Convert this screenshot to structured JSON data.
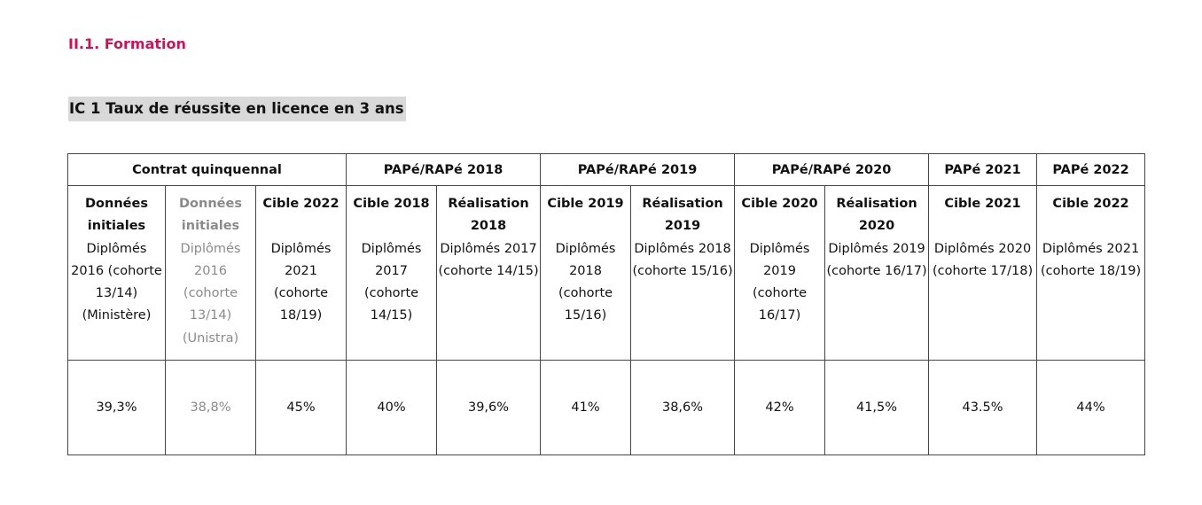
{
  "section_heading": "II.1. Formation",
  "indicator_title": "IC 1 Taux de réussite en licence en 3 ans",
  "table": {
    "groups": [
      "Contrat quinquennal",
      "PAPé/RAPé 2018",
      "PAPé/RAPé 2019",
      "PAPé/RAPé 2020",
      "PAPé 2021",
      "PAPé 2022"
    ],
    "columns": [
      {
        "title": "Données initiales",
        "subtitle": "Diplômés 2016 (cohorte 13/14) (Ministère)",
        "value": "39,3%"
      },
      {
        "title": "Données initiales",
        "subtitle": "Diplômés 2016 (cohorte 13/14) (Unistra)",
        "value": "38,8%"
      },
      {
        "title": "Cible 2022",
        "subtitle": "Diplômés 2021 (cohorte 18/19)",
        "value": "45%"
      },
      {
        "title": "Cible 2018",
        "subtitle": "Diplômés 2017 (cohorte 14/15)",
        "value": "40%"
      },
      {
        "title": "Réalisation 2018",
        "subtitle": "Diplômés 2017 (cohorte 14/15)",
        "value": "39,6%"
      },
      {
        "title": "Cible 2019",
        "subtitle": "Diplômés 2018 (cohorte 15/16)",
        "value": "41%"
      },
      {
        "title": "Réalisation 2019",
        "subtitle": "Diplômés 2018 (cohorte 15/16)",
        "value": "38,6%"
      },
      {
        "title": "Cible 2020",
        "subtitle": "Diplômés 2019 (cohorte 16/17)",
        "value": "42%"
      },
      {
        "title": "Réalisation 2020",
        "subtitle": "Diplômés 2019 (cohorte 16/17)",
        "value": "41,5%"
      },
      {
        "title": "Cible 2021",
        "subtitle": "Diplômés 2020 (cohorte 17/18)",
        "value": "43.5%"
      },
      {
        "title": "Cible 2022",
        "subtitle": "Diplômés 2021 (cohorte 18/19)",
        "value": "44%"
      }
    ],
    "muted_text_color": "#8a8a8a"
  },
  "colors": {
    "heading": "#c2185b",
    "title_highlight": "#d9d9d9",
    "border": "#444444"
  }
}
